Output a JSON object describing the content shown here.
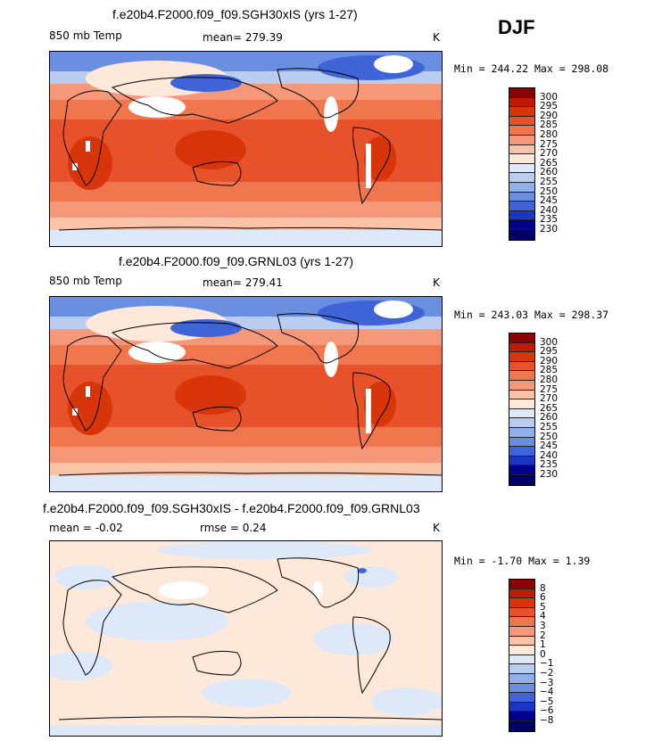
{
  "season": "DJF",
  "panels": [
    {
      "title": "f.e20b4.F2000.f09_f09.SGH30xIS (yrs 1-27)",
      "left_label": "850 mb Temp",
      "mid_label": "mean= 279.39",
      "unit": "K",
      "stats": "Min = 244.22 Max = 298.08"
    },
    {
      "title": "f.e20b4.F2000.f09_f09.GRNL03 (yrs 1-27)",
      "left_label": "850 mb Temp",
      "mid_label": "mean= 279.41",
      "unit": "K",
      "stats": "Min = 243.03 Max = 298.37"
    },
    {
      "title": "f.e20b4.F2000.f09_f09.SGH30xIS - f.e20b4.F2000.f09_f09.GRNL03",
      "left_label": "mean =   -0.02",
      "mid_label": "rmse =    0.24",
      "unit": "K",
      "stats": "Min =  -1.70 Max =   1.39"
    }
  ],
  "colorbars": {
    "temp": {
      "labels": [
        "300",
        "295",
        "290",
        "285",
        "280",
        "275",
        "270",
        "265",
        "260",
        "255",
        "250",
        "245",
        "240",
        "235",
        "230"
      ],
      "colors": [
        "#8b0000",
        "#c01a00",
        "#d8350a",
        "#e8522a",
        "#f0764e",
        "#f5987a",
        "#fac2a6",
        "#fde8da",
        "#dde8f8",
        "#b9cdf1",
        "#8fb0e8",
        "#6a8ee0",
        "#3f64d8",
        "#1a36c4",
        "#00008b",
        "#000066"
      ]
    },
    "diff": {
      "labels": [
        "8",
        "6",
        "5",
        "4",
        "3",
        "2",
        "1",
        "0",
        "−1",
        "−2",
        "−3",
        "−4",
        "−5",
        "−6",
        "−8"
      ],
      "colors": [
        "#8b0000",
        "#c01a00",
        "#d8350a",
        "#e8522a",
        "#f0764e",
        "#f5987a",
        "#fac2a6",
        "#fde8da",
        "#dde8f8",
        "#b9cdf1",
        "#8fb0e8",
        "#6a8ee0",
        "#3f64d8",
        "#1a36c4",
        "#00008b",
        "#000066"
      ]
    }
  },
  "icons": {
    "map": "temperature-map",
    "colorbar": "colorbar-legend"
  }
}
